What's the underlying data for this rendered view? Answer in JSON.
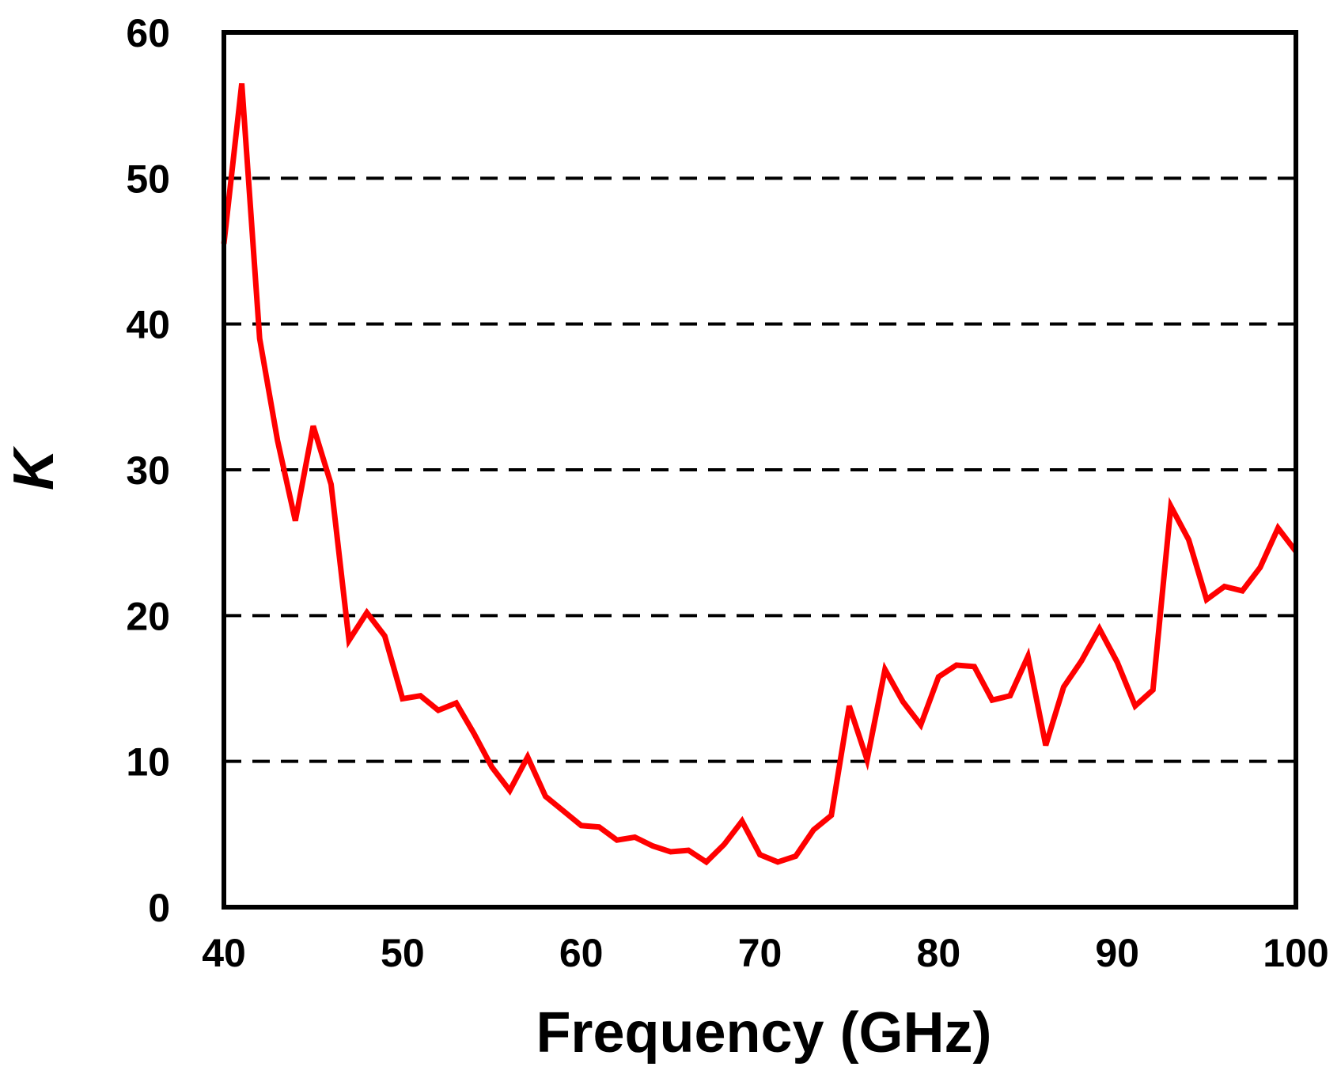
{
  "chart_data": {
    "type": "line",
    "title": "",
    "xlabel": "Frequency (GHz)",
    "ylabel": "K",
    "xlim": [
      40,
      100
    ],
    "ylim": [
      0,
      60
    ],
    "xticks": [
      40,
      50,
      60,
      70,
      80,
      90,
      100
    ],
    "yticks": [
      0,
      10,
      20,
      30,
      40,
      50,
      60
    ],
    "grid": "horizontal dashed",
    "series": [
      {
        "color": "#ff0000",
        "x": [
          40,
          41,
          42,
          43,
          44,
          45,
          46,
          47,
          48,
          49,
          50,
          51,
          52,
          53,
          54,
          55,
          56,
          57,
          58,
          59,
          60,
          61,
          62,
          63,
          64,
          65,
          66,
          67,
          68,
          69,
          70,
          71,
          72,
          73,
          74,
          75,
          76,
          77,
          78,
          79,
          80,
          81,
          82,
          83,
          84,
          85,
          86,
          87,
          88,
          89,
          90,
          91,
          92,
          93,
          94,
          95,
          96,
          97,
          98,
          99,
          100
        ],
        "y": [
          45.5,
          56.5,
          39,
          32,
          26.5,
          33,
          29,
          18.3,
          20.2,
          18.6,
          14.3,
          14.5,
          13.5,
          14,
          11.9,
          9.6,
          8,
          10.3,
          7.6,
          6.6,
          5.6,
          5.5,
          4.6,
          4.8,
          4.2,
          3.8,
          3.9,
          3.1,
          4.3,
          5.9,
          3.6,
          3.1,
          3.5,
          5.3,
          6.3,
          13.8,
          10.1,
          16.3,
          14.1,
          12.5,
          15.8,
          16.6,
          16.5,
          14.2,
          14.5,
          17.2,
          11.1,
          15.1,
          16.9,
          19.1,
          16.8,
          13.8,
          14.9,
          27.5,
          25.2,
          21.1,
          22,
          21.7,
          23.3,
          26,
          24.4
        ]
      }
    ]
  }
}
